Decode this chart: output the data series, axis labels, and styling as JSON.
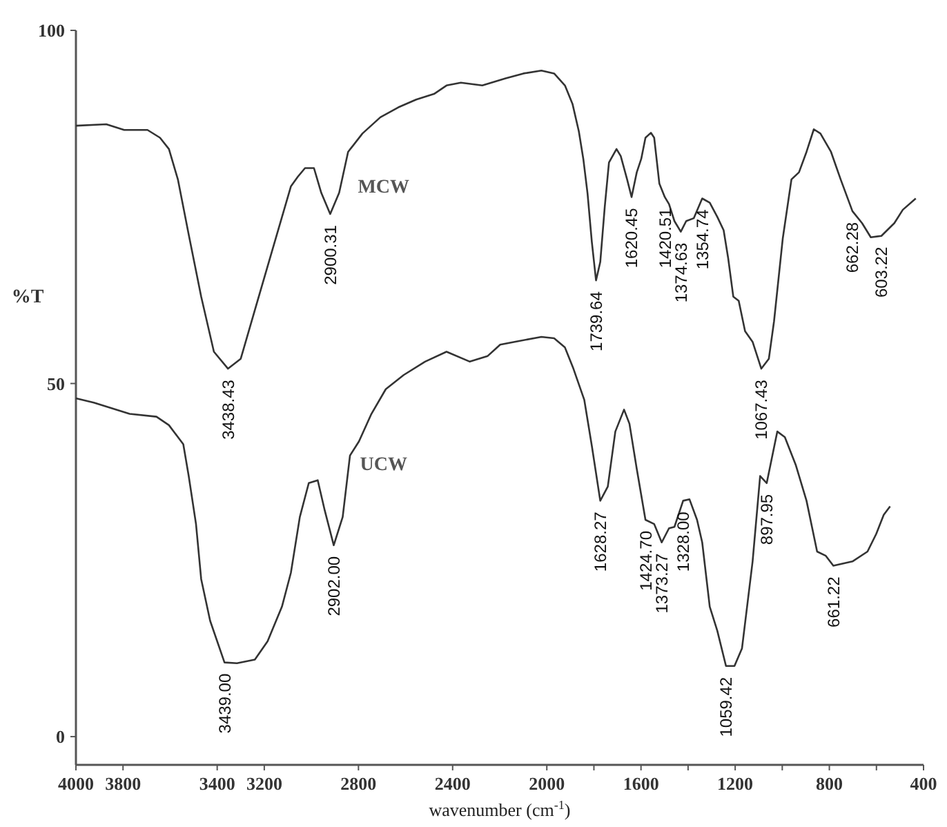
{
  "chart_data": {
    "type": "line",
    "xlabel": "wavenumber (cm$^{-1}$)",
    "ylabel": "%T",
    "xlim": [
      4000,
      400
    ],
    "ylim": [
      -4,
      100
    ],
    "xticks": [
      4000,
      3800,
      3400,
      3200,
      2800,
      2400,
      2000,
      {
        "value": 1800,
        "label": null
      },
      1600,
      {
        "value": 1400,
        "label": null
      },
      1200,
      {
        "value": 1000,
        "label": null
      },
      800,
      {
        "value": 600,
        "label": null
      },
      400
    ],
    "yticks": [
      0,
      50,
      100
    ],
    "grid": false,
    "marker": "none",
    "line_style": "solid",
    "series": [
      {
        "name": "MCW",
        "color": "#333333",
        "x": [
          4000,
          3871,
          3795,
          3696,
          3643,
          3605,
          3567,
          3521,
          3468,
          3414,
          3354,
          3300,
          3240,
          3164,
          3087,
          3057,
          3027,
          2989,
          2958,
          2920,
          2882,
          2844,
          2783,
          2707,
          2631,
          2555,
          2479,
          2426,
          2365,
          2274,
          2175,
          2099,
          2023,
          1969,
          1923,
          1891,
          1864,
          1845,
          1827,
          1809,
          1791,
          1773,
          1754,
          1736,
          1704,
          1686,
          1659,
          1640,
          1618,
          1599,
          1581,
          1558,
          1544,
          1522,
          1499,
          1481,
          1458,
          1431,
          1408,
          1376,
          1340,
          1308,
          1276,
          1249,
          1230,
          1208,
          1185,
          1158,
          1126,
          1089,
          1057,
          1035,
          998,
          961,
          929,
          897,
          866,
          838,
          793,
          752,
          702,
          661,
          624,
          579,
          524,
          488,
          433
        ],
        "values": [
          86.5,
          86.7,
          85.9,
          85.9,
          84.8,
          83.2,
          78.9,
          71.1,
          62.3,
          54.5,
          52.1,
          53.5,
          60.4,
          69.1,
          77.9,
          79.3,
          80.5,
          80.5,
          77.0,
          74.0,
          77.0,
          82.8,
          85.4,
          87.7,
          89.1,
          90.2,
          91.0,
          92.2,
          92.6,
          92.2,
          93.2,
          93.9,
          94.3,
          93.9,
          92.2,
          89.6,
          85.7,
          81.8,
          76.9,
          70.1,
          64.6,
          67.2,
          75.0,
          81.3,
          83.2,
          82.2,
          78.9,
          76.4,
          79.9,
          81.8,
          84.8,
          85.5,
          84.8,
          78.3,
          76.4,
          75.4,
          73.0,
          71.5,
          73.0,
          73.4,
          76.2,
          75.6,
          73.6,
          71.7,
          67.8,
          62.3,
          61.7,
          57.4,
          55.9,
          52.1,
          53.5,
          58.8,
          70.5,
          78.9,
          79.9,
          82.8,
          86.0,
          85.4,
          82.8,
          78.9,
          74.4,
          72.7,
          70.7,
          70.9,
          72.7,
          74.6,
          76.2
        ]
      },
      {
        "name": "UCW",
        "color": "#333333",
        "x": [
          4000,
          3924,
          3772,
          3658,
          3605,
          3544,
          3521,
          3490,
          3468,
          3430,
          3369,
          3316,
          3240,
          3186,
          3125,
          3087,
          3049,
          3011,
          2973,
          2943,
          2905,
          2867,
          2836,
          2798,
          2745,
          2684,
          2608,
          2517,
          2426,
          2327,
          2251,
          2198,
          2137,
          2023,
          1969,
          1923,
          1887,
          1841,
          1809,
          1773,
          1741,
          1709,
          1672,
          1649,
          1618,
          1581,
          1544,
          1512,
          1481,
          1458,
          1421,
          1394,
          1362,
          1340,
          1308,
          1276,
          1239,
          1203,
          1171,
          1126,
          1094,
          1066,
          1021,
          989,
          943,
          897,
          852,
          815,
          783,
          702,
          638,
          601,
          569,
          542
        ],
        "values": [
          47.9,
          47.3,
          45.7,
          45.3,
          44.1,
          41.4,
          36.9,
          30.1,
          22.3,
          16.4,
          10.5,
          10.4,
          10.9,
          13.5,
          18.4,
          23.2,
          31.1,
          35.9,
          36.3,
          32.0,
          27.1,
          31.1,
          39.8,
          41.8,
          45.7,
          49.2,
          51.2,
          53.1,
          54.5,
          53.1,
          53.9,
          55.5,
          55.9,
          56.6,
          56.4,
          55.1,
          52.1,
          47.7,
          41.2,
          33.4,
          35.4,
          43.2,
          46.3,
          44.3,
          37.9,
          30.7,
          30.1,
          27.5,
          29.5,
          29.7,
          33.4,
          33.6,
          30.7,
          27.5,
          18.4,
          15.0,
          10.0,
          10.0,
          12.5,
          24.8,
          36.9,
          35.9,
          43.2,
          42.4,
          38.5,
          33.4,
          26.2,
          25.6,
          24.2,
          24.8,
          26.2,
          28.7,
          31.4,
          32.6
        ]
      }
    ],
    "annotations": [
      {
        "text": "3438.43",
        "x": 3354,
        "y": 52.1
      },
      {
        "text": "2900.31",
        "x": 2920,
        "y": 74.0
      },
      {
        "text": "1739.64",
        "x": 1791,
        "y": 64.6
      },
      {
        "text": "1620.45",
        "x": 1640,
        "y": 76.4
      },
      {
        "text": "1420.51",
        "x": 1499,
        "y": 76.4
      },
      {
        "text": "1374.63",
        "x": 1431,
        "y": 71.5
      },
      {
        "text": "1354.74",
        "x": 1340,
        "y": 76.2
      },
      {
        "text": "1067.43",
        "x": 1089,
        "y": 52.1
      },
      {
        "text": "662.28",
        "x": 702,
        "y": 74.4
      },
      {
        "text": "603.22",
        "x": 579,
        "y": 70.9
      },
      {
        "text": "3439.00",
        "x": 3369,
        "y": 10.5
      },
      {
        "text": "2902.00",
        "x": 2905,
        "y": 27.1
      },
      {
        "text": "1628.27",
        "x": 1773,
        "y": 33.4
      },
      {
        "text": "1424.70",
        "x": 1581,
        "y": 30.7
      },
      {
        "text": "1373.27",
        "x": 1512,
        "y": 27.5
      },
      {
        "text": "1328.00",
        "x": 1421,
        "y": 33.4
      },
      {
        "text": "1059.42",
        "x": 1239,
        "y": 10.0
      },
      {
        "text": "897.95",
        "x": 1066,
        "y": 35.9
      },
      {
        "text": "661.22",
        "x": 783,
        "y": 24.2
      }
    ]
  }
}
